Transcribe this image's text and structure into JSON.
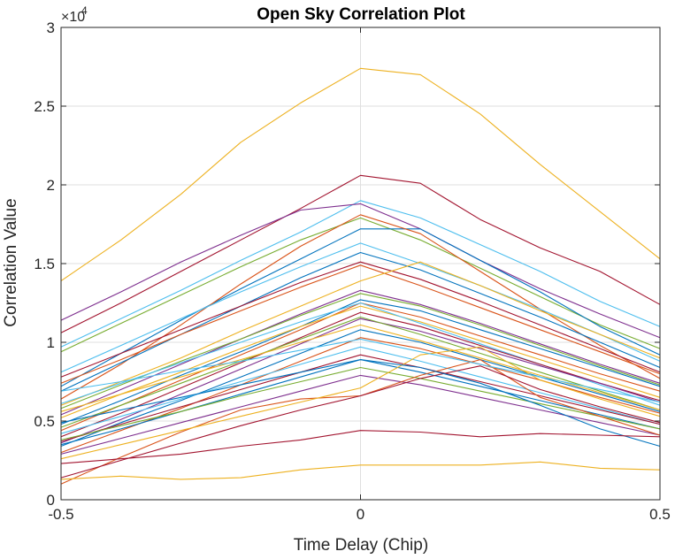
{
  "chart_data": {
    "type": "line",
    "title": "Open Sky Correlation Plot",
    "xlabel": "Time Delay (Chip)",
    "ylabel": "Correlation Value",
    "y_exponent_base": "×10",
    "y_exponent_power": "4",
    "xlim": [
      -0.5,
      0.5
    ],
    "ylim": [
      0,
      30000
    ],
    "x_ticks": [
      {
        "value": -0.5,
        "label": "-0.5"
      },
      {
        "value": 0,
        "label": "0"
      },
      {
        "value": 0.5,
        "label": "0.5"
      }
    ],
    "y_ticks": [
      {
        "value": 0,
        "label": "0"
      },
      {
        "value": 5000,
        "label": "0.5"
      },
      {
        "value": 10000,
        "label": "1"
      },
      {
        "value": 15000,
        "label": "1.5"
      },
      {
        "value": 20000,
        "label": "2"
      },
      {
        "value": 25000,
        "label": "2.5"
      },
      {
        "value": 30000,
        "label": "3"
      }
    ],
    "grid": true,
    "x": [
      -0.5,
      -0.4,
      -0.3,
      -0.2,
      -0.1,
      0,
      0.1,
      0.2,
      0.3,
      0.4,
      0.5
    ],
    "series": [
      {
        "color": "#EDB120",
        "values": [
          13900,
          16500,
          19400,
          22700,
          25200,
          27400,
          27000,
          24500,
          21300,
          18300,
          15300
        ]
      },
      {
        "color": "#A2142F",
        "values": [
          10600,
          12500,
          14500,
          16500,
          18500,
          20600,
          20100,
          17800,
          16000,
          14500,
          12400
        ]
      },
      {
        "color": "#4DBEEE",
        "values": [
          9700,
          11500,
          13300,
          15200,
          17000,
          19000,
          17900,
          16200,
          14500,
          12600,
          11000
        ]
      },
      {
        "color": "#7E2F8E",
        "values": [
          11400,
          13200,
          15100,
          16800,
          18400,
          18800,
          17200,
          15200,
          13400,
          11800,
          10300
        ]
      },
      {
        "color": "#77AC30",
        "values": [
          9400,
          11200,
          13000,
          14800,
          16500,
          17900,
          16500,
          14700,
          12900,
          11100,
          9600
        ]
      },
      {
        "color": "#0072BD",
        "values": [
          7200,
          9300,
          11400,
          13400,
          15300,
          17200,
          17200,
          15200,
          13200,
          11000,
          9200
        ]
      },
      {
        "color": "#D95319",
        "values": [
          6400,
          8600,
          11100,
          13700,
          16100,
          18100,
          16900,
          14500,
          12100,
          9800,
          7700
        ]
      },
      {
        "color": "#4DBEEE",
        "values": [
          8100,
          9800,
          11500,
          13200,
          14800,
          16300,
          15000,
          13600,
          12100,
          10500,
          8800
        ]
      },
      {
        "color": "#0072BD",
        "values": [
          6900,
          8700,
          10500,
          12300,
          14100,
          15700,
          14600,
          13100,
          11600,
          10000,
          8400
        ]
      },
      {
        "color": "#A2142F",
        "values": [
          7800,
          9300,
          10800,
          12300,
          13800,
          15100,
          14000,
          12600,
          11100,
          9600,
          8100
        ]
      },
      {
        "color": "#D95319",
        "values": [
          7400,
          8900,
          10500,
          12000,
          13500,
          14900,
          13600,
          12200,
          10800,
          9400,
          8000
        ]
      },
      {
        "color": "#EDB120",
        "values": [
          6000,
          7500,
          9000,
          10700,
          12300,
          13900,
          15100,
          13600,
          12000,
          10500,
          9000
        ]
      },
      {
        "color": "#7E2F8E",
        "values": [
          5400,
          7000,
          8600,
          10200,
          11800,
          13300,
          12400,
          11200,
          9900,
          8600,
          7400
        ]
      },
      {
        "color": "#77AC30",
        "values": [
          5800,
          7300,
          8800,
          10200,
          11700,
          13100,
          12300,
          11100,
          9800,
          8500,
          7300
        ]
      },
      {
        "color": "#0072BD",
        "values": [
          4800,
          6300,
          7900,
          9400,
          11000,
          12700,
          12000,
          10800,
          9600,
          8400,
          7200
        ]
      },
      {
        "color": "#D95319",
        "values": [
          4400,
          6000,
          7600,
          9200,
          10800,
          12500,
          11600,
          10400,
          9200,
          8000,
          6900
        ]
      },
      {
        "color": "#EDB120",
        "values": [
          5200,
          6700,
          8100,
          9600,
          11000,
          12300,
          11300,
          10100,
          8900,
          7700,
          6500
        ]
      },
      {
        "color": "#4DBEEE",
        "values": [
          6100,
          7400,
          8700,
          10000,
          11300,
          12500,
          11200,
          9900,
          8600,
          7300,
          6000
        ]
      },
      {
        "color": "#A2142F",
        "values": [
          4000,
          5500,
          7100,
          8700,
          10300,
          11900,
          11000,
          9800,
          8600,
          7400,
          6300
        ]
      },
      {
        "color": "#7E2F8E",
        "values": [
          3600,
          5100,
          6700,
          8300,
          9900,
          11500,
          10700,
          9600,
          8500,
          7400,
          6200
        ]
      },
      {
        "color": "#77AC30",
        "values": [
          4600,
          6000,
          7400,
          8800,
          10200,
          11600,
          10500,
          9300,
          8100,
          6900,
          5700
        ]
      },
      {
        "color": "#0072BD",
        "values": [
          3400,
          4900,
          6300,
          7800,
          9300,
          10800,
          10000,
          8900,
          7800,
          6700,
          5600
        ]
      },
      {
        "color": "#D95319",
        "values": [
          3000,
          4400,
          5800,
          7300,
          8800,
          10300,
          9600,
          8600,
          7600,
          6500,
          5500
        ]
      },
      {
        "color": "#EDB120",
        "values": [
          5600,
          6700,
          7800,
          8900,
          10000,
          11100,
          10100,
          9000,
          7900,
          6800,
          5700
        ]
      },
      {
        "color": "#4DBEEE",
        "values": [
          4200,
          5300,
          6400,
          7500,
          8600,
          9700,
          8800,
          7800,
          6800,
          5800,
          4800
        ]
      },
      {
        "color": "#A2142F",
        "values": [
          3700,
          4800,
          5900,
          7000,
          8100,
          9200,
          8400,
          7500,
          6600,
          5700,
          4800
        ]
      },
      {
        "color": "#0072BD",
        "values": [
          3500,
          4500,
          5600,
          6700,
          7800,
          8900,
          8100,
          7200,
          6300,
          5400,
          4500
        ]
      },
      {
        "color": "#77AC30",
        "values": [
          3800,
          4700,
          5600,
          6600,
          7500,
          8400,
          7700,
          6900,
          6100,
          5300,
          4500
        ]
      },
      {
        "color": "#7E2F8E",
        "values": [
          2900,
          3900,
          4900,
          5900,
          6900,
          7900,
          7300,
          6500,
          5700,
          4900,
          4100
        ]
      },
      {
        "color": "#D95319",
        "values": [
          1000,
          2700,
          4300,
          5700,
          6400,
          6600,
          7900,
          8900,
          6500,
          5300,
          4100
        ]
      },
      {
        "color": "#EDB120",
        "values": [
          2600,
          3500,
          4400,
          5300,
          6200,
          7100,
          9200,
          9700,
          7600,
          6400,
          5300
        ]
      },
      {
        "color": "#A2142F",
        "values": [
          1400,
          2500,
          3600,
          4700,
          5700,
          6600,
          7700,
          8500,
          7000,
          5900,
          4900
        ]
      },
      {
        "color": "#4DBEEE",
        "values": [
          6900,
          7500,
          8200,
          8800,
          9500,
          10200,
          9400,
          8600,
          7800,
          7000,
          6200
        ]
      },
      {
        "color": "#0072BD",
        "values": [
          4900,
          5700,
          6500,
          7300,
          8100,
          8900,
          8400,
          7400,
          6000,
          4500,
          3400
        ]
      },
      {
        "color": "#A2142F",
        "values": [
          2300,
          2600,
          2900,
          3400,
          3800,
          4400,
          4300,
          4000,
          4200,
          4100,
          4000
        ]
      },
      {
        "color": "#EDB120",
        "values": [
          1300,
          1500,
          1300,
          1400,
          1900,
          2200,
          2200,
          2200,
          2400,
          2000,
          1900
        ]
      }
    ]
  }
}
